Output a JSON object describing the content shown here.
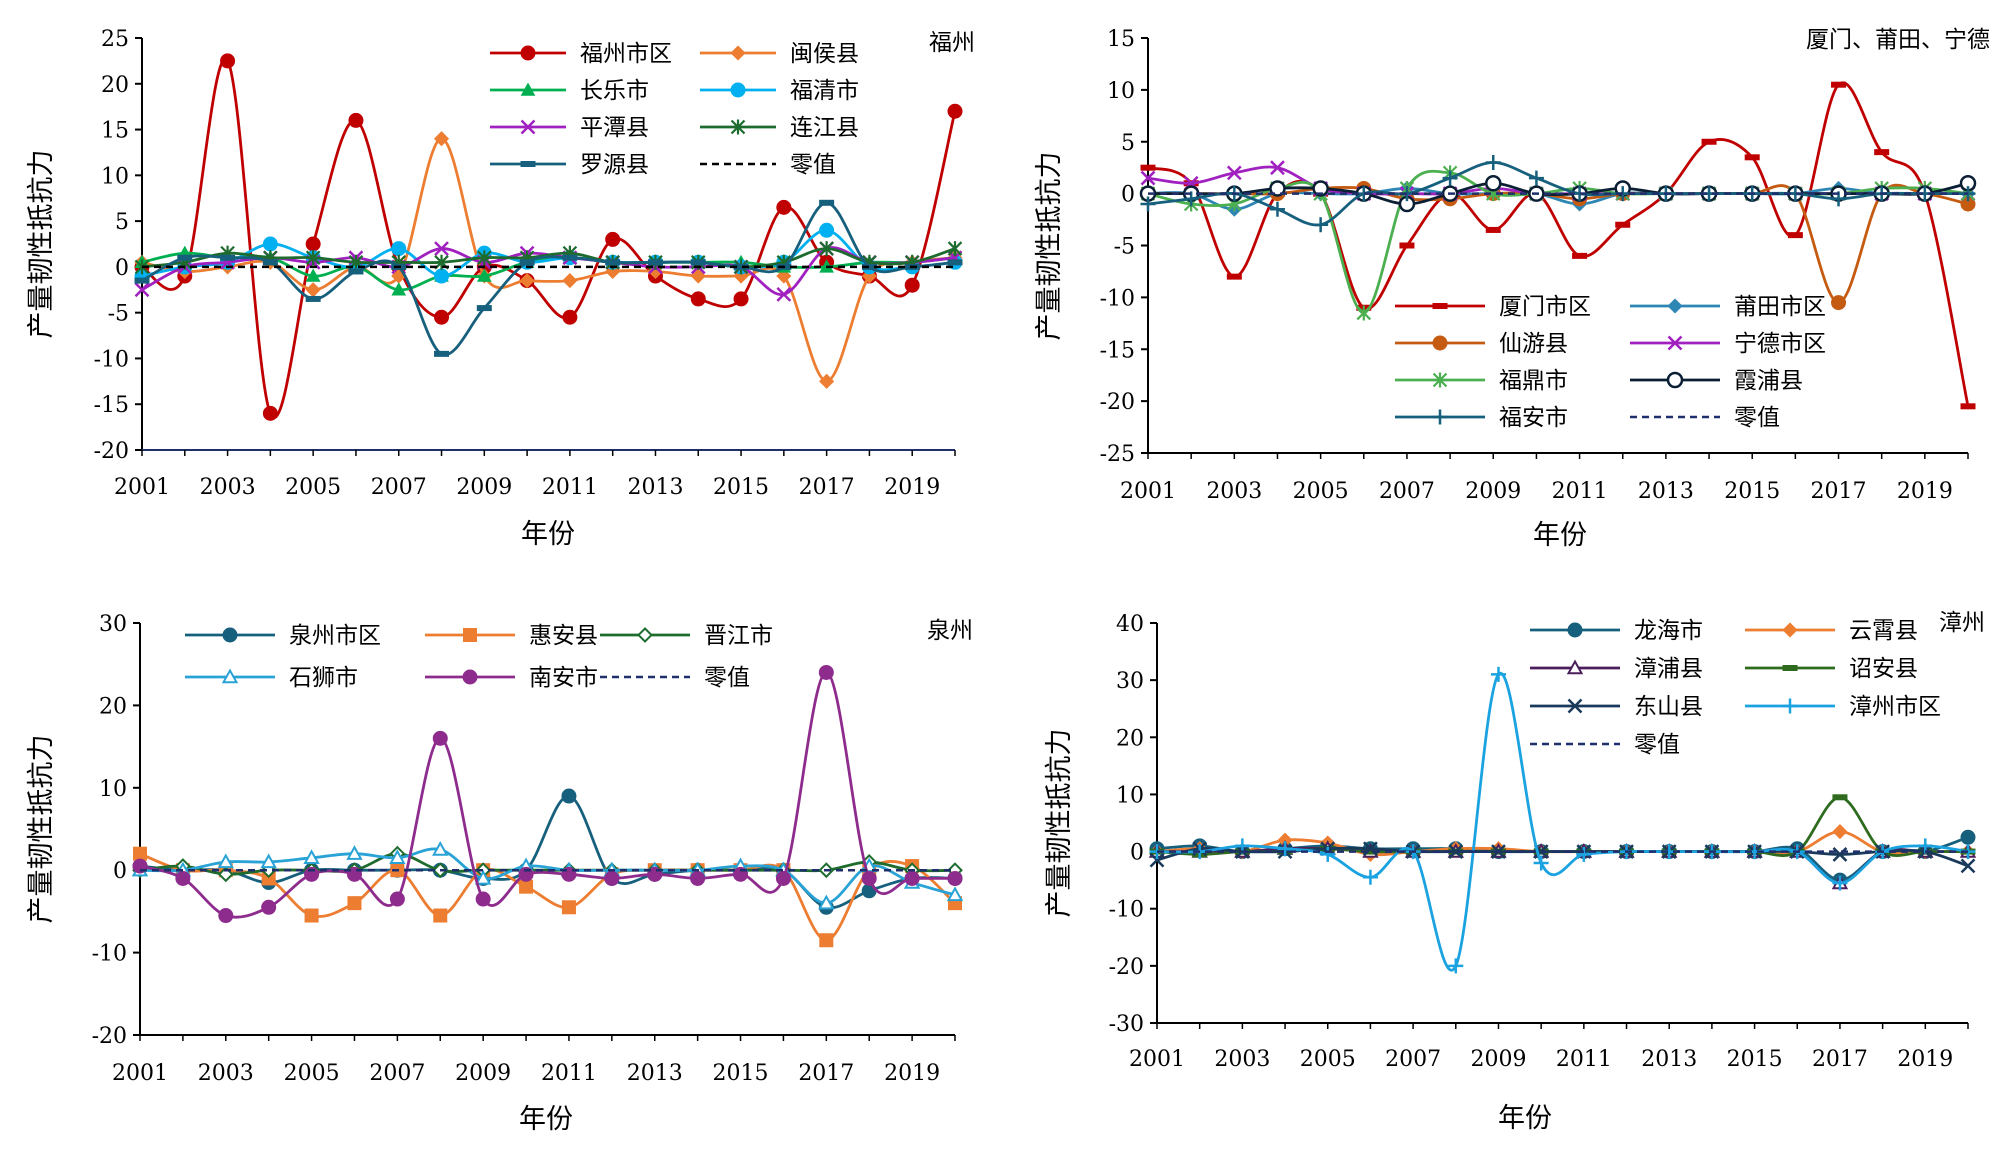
{
  "chart_data": [
    {
      "type": "line",
      "title": "福州",
      "xlabel": "年份",
      "ylabel": "产量韧性抵抗力",
      "ylim": [
        -20,
        25
      ],
      "yticks": [
        -20,
        -15,
        -10,
        -5,
        0,
        5,
        10,
        15,
        20,
        25
      ],
      "x": [
        2001,
        2002,
        2003,
        2004,
        2005,
        2006,
        2007,
        2008,
        2009,
        2010,
        2011,
        2012,
        2013,
        2014,
        2015,
        2016,
        2017,
        2018,
        2019,
        2020
      ],
      "xticks": [
        2001,
        2003,
        2005,
        2007,
        2009,
        2011,
        2013,
        2015,
        2017,
        2019
      ],
      "legend": "top-right",
      "series": [
        {
          "name": "福州市区",
          "color": "#c00000",
          "marker": "circle",
          "values": [
            0,
            -1,
            22.5,
            -16,
            2.5,
            16,
            0,
            -5.5,
            0,
            -1.5,
            -5.5,
            3,
            -1,
            -3.5,
            -3.5,
            6.5,
            0.5,
            -1,
            -2,
            17
          ]
        },
        {
          "name": "闽侯县",
          "color": "#ed7d31",
          "marker": "diamond",
          "values": [
            0.5,
            -0.5,
            0,
            0.5,
            -2.5,
            0,
            -1,
            14,
            -1,
            -1.5,
            -1.5,
            -0.5,
            -0.5,
            -1,
            -1,
            -1,
            -12.5,
            -1,
            0.5,
            1
          ]
        },
        {
          "name": "长乐市",
          "color": "#00b050",
          "marker": "triangle",
          "values": [
            0.5,
            1.5,
            1,
            1,
            -1,
            0,
            -2.5,
            -1,
            -1,
            0.5,
            1,
            0.5,
            0.5,
            0.5,
            0.5,
            0,
            0,
            0.5,
            0.5,
            1
          ]
        },
        {
          "name": "福清市",
          "color": "#00b0f0",
          "marker": "circle",
          "values": [
            -1,
            0,
            0.5,
            2.5,
            1,
            0,
            2,
            -1,
            1.5,
            0.5,
            1,
            0.5,
            0.5,
            0.5,
            0,
            0.5,
            4,
            0,
            0,
            0.5
          ]
        },
        {
          "name": "平潭县",
          "color": "#a020c0",
          "marker": "x",
          "values": [
            -2.5,
            0,
            0.5,
            1,
            0.5,
            1,
            0,
            2,
            0.5,
            1.5,
            1,
            0.5,
            0,
            0,
            0,
            -3,
            2,
            0.5,
            0.5,
            1
          ]
        },
        {
          "name": "连江县",
          "color": "#1e6b2e",
          "marker": "star",
          "values": [
            0,
            0.5,
            1.5,
            1,
            1,
            0.5,
            0.5,
            0.5,
            1,
            1,
            1.5,
            0.5,
            0.5,
            0.5,
            0,
            0.5,
            2,
            0.5,
            0.5,
            2
          ]
        },
        {
          "name": "罗源县",
          "color": "#17607d",
          "marker": "dash",
          "values": [
            -1.5,
            1,
            1,
            0.5,
            -3.5,
            -0.5,
            0,
            -9.5,
            -4.5,
            0.5,
            1,
            0.5,
            0.5,
            0.5,
            0,
            0,
            7,
            0,
            0,
            0.5
          ]
        },
        {
          "name": "零值",
          "color": "#000000",
          "marker": "none",
          "dashed": true,
          "values": [
            0,
            0,
            0,
            0,
            0,
            0,
            0,
            0,
            0,
            0,
            0,
            0,
            0,
            0,
            0,
            0,
            0,
            0,
            0,
            0
          ]
        }
      ]
    },
    {
      "type": "line",
      "title": "厦门、莆田、宁德",
      "xlabel": "年份",
      "ylabel": "产量韧性抵抗力",
      "ylim": [
        -25,
        15
      ],
      "yticks": [
        -25,
        -20,
        -15,
        -10,
        -5,
        0,
        5,
        10,
        15
      ],
      "x": [
        2001,
        2002,
        2003,
        2004,
        2005,
        2006,
        2007,
        2008,
        2009,
        2010,
        2011,
        2012,
        2013,
        2014,
        2015,
        2016,
        2017,
        2018,
        2019,
        2020
      ],
      "xticks": [
        2001,
        2003,
        2005,
        2007,
        2009,
        2011,
        2013,
        2015,
        2017,
        2019
      ],
      "legend": "bottom-center",
      "series": [
        {
          "name": "厦门市区",
          "color": "#c00000",
          "marker": "dash",
          "values": [
            2.5,
            1,
            -8,
            0,
            0,
            -11,
            -5,
            0,
            -3.5,
            0,
            -6,
            -3,
            0,
            5,
            3.5,
            -4,
            10.5,
            4,
            0,
            -20.5
          ]
        },
        {
          "name": "莆田市区",
          "color": "#2e86b5",
          "marker": "diamond",
          "values": [
            0,
            0,
            -1.5,
            0,
            0,
            0,
            0.5,
            0,
            0,
            0,
            -1,
            0,
            0,
            0,
            0,
            0,
            0.5,
            0,
            0,
            0
          ]
        },
        {
          "name": "仙游县",
          "color": "#c55a11",
          "marker": "circle",
          "values": [
            0,
            0,
            0,
            0,
            0.5,
            0.5,
            -0.5,
            -0.5,
            0,
            0,
            -0.5,
            0,
            0,
            0,
            0,
            0,
            -10.5,
            0,
            0,
            -1
          ]
        },
        {
          "name": "宁德市区",
          "color": "#a020c0",
          "marker": "x",
          "values": [
            1.5,
            1,
            2,
            2.5,
            0.5,
            0,
            0,
            0,
            0.5,
            0,
            0,
            0,
            0,
            0,
            0,
            0,
            0,
            0,
            0,
            0
          ]
        },
        {
          "name": "福鼎市",
          "color": "#4caf50",
          "marker": "star",
          "values": [
            0,
            -1,
            -1,
            0.5,
            0,
            -11.5,
            0.5,
            2,
            0,
            0,
            0.5,
            0,
            0,
            0,
            0,
            0,
            0,
            0.5,
            0.5,
            0
          ]
        },
        {
          "name": "霞浦县",
          "color": "#0a1f33",
          "marker": "opencircle",
          "values": [
            0,
            0,
            0,
            0.5,
            0.5,
            0,
            -1,
            0,
            1,
            0,
            0,
            0.5,
            0,
            0,
            0,
            0,
            0,
            0,
            0,
            1
          ]
        },
        {
          "name": "福安市",
          "color": "#17607d",
          "marker": "plus",
          "values": [
            -1,
            -0.5,
            0,
            -1.5,
            -3,
            0,
            0,
            1.5,
            3,
            1.5,
            0,
            0,
            0,
            0,
            0,
            0,
            -0.5,
            0,
            0,
            0
          ]
        },
        {
          "name": "零值",
          "color": "#1f2f6b",
          "marker": "none",
          "dashed": true,
          "values": [
            0,
            0,
            0,
            0,
            0,
            0,
            0,
            0,
            0,
            0,
            0,
            0,
            0,
            0,
            0,
            0,
            0,
            0,
            0,
            0
          ]
        }
      ]
    },
    {
      "type": "line",
      "title": "泉州",
      "xlabel": "年份",
      "ylabel": "产量韧性抵抗力",
      "ylim": [
        -20,
        30
      ],
      "yticks": [
        -20,
        -10,
        0,
        10,
        20,
        30
      ],
      "x": [
        2001,
        2002,
        2003,
        2004,
        2005,
        2006,
        2007,
        2008,
        2009,
        2010,
        2011,
        2012,
        2013,
        2014,
        2015,
        2016,
        2017,
        2018,
        2019,
        2020
      ],
      "xticks": [
        2001,
        2003,
        2005,
        2007,
        2009,
        2011,
        2013,
        2015,
        2017,
        2019
      ],
      "legend": "top",
      "series": [
        {
          "name": "泉州市区",
          "color": "#17607d",
          "marker": "circle",
          "values": [
            0.5,
            0,
            0,
            -1.5,
            0,
            0,
            0,
            0,
            -1,
            0,
            9,
            -1,
            -0.5,
            0,
            0,
            0,
            -4.5,
            -2.5,
            -1,
            -1
          ]
        },
        {
          "name": "惠安县",
          "color": "#ed7d31",
          "marker": "square",
          "values": [
            2,
            0,
            0,
            -1,
            -5.5,
            -4,
            0,
            -5.5,
            0,
            -2,
            -4.5,
            -0.5,
            0,
            0,
            0,
            0,
            -8.5,
            0,
            0.5,
            -4
          ]
        },
        {
          "name": "晋江市",
          "color": "#1e6b2e",
          "marker": "diamondopen",
          "values": [
            0,
            0.5,
            -0.5,
            0,
            0,
            0,
            2,
            0,
            0,
            0,
            0,
            0,
            0,
            0,
            0,
            0,
            0,
            1,
            0,
            0
          ]
        },
        {
          "name": "石狮市",
          "color": "#29a3d6",
          "marker": "triangleopen",
          "values": [
            0,
            0,
            1,
            1,
            1.5,
            2,
            1.5,
            2.5,
            -1,
            0.5,
            0,
            0,
            0,
            0,
            0.5,
            0,
            -4,
            0.5,
            -1.5,
            -3
          ]
        },
        {
          "name": "南安市",
          "color": "#8e2c8e",
          "marker": "circle",
          "values": [
            0.5,
            -1,
            -5.5,
            -4.5,
            -0.5,
            -0.5,
            -3.5,
            16,
            -3.5,
            -0.5,
            -0.5,
            -1,
            -0.5,
            -1,
            -0.5,
            -1,
            24,
            -1,
            -1,
            -1
          ]
        },
        {
          "name": "零值",
          "color": "#1f2f6b",
          "marker": "none",
          "dashed": true,
          "values": [
            0,
            0,
            0,
            0,
            0,
            0,
            0,
            0,
            0,
            0,
            0,
            0,
            0,
            0,
            0,
            0,
            0,
            0,
            0,
            0
          ]
        }
      ]
    },
    {
      "type": "line",
      "title": "漳州",
      "xlabel": "年份",
      "ylabel": "产量韧性抵抗力",
      "ylim": [
        -30,
        40
      ],
      "yticks": [
        -30,
        -20,
        -10,
        0,
        10,
        20,
        30,
        40
      ],
      "x": [
        2001,
        2002,
        2003,
        2004,
        2005,
        2006,
        2007,
        2008,
        2009,
        2010,
        2011,
        2012,
        2013,
        2014,
        2015,
        2016,
        2017,
        2018,
        2019,
        2020
      ],
      "xticks": [
        2001,
        2003,
        2005,
        2007,
        2009,
        2011,
        2013,
        2015,
        2017,
        2019
      ],
      "legend": "top",
      "series": [
        {
          "name": "龙海市",
          "color": "#17607d",
          "marker": "circle",
          "values": [
            0.5,
            1,
            0,
            0.5,
            1,
            0.5,
            0.5,
            0.5,
            0,
            0,
            0,
            0,
            0,
            0,
            0,
            0.5,
            -5,
            0,
            0,
            2.5
          ]
        },
        {
          "name": "云霄县",
          "color": "#ed7d31",
          "marker": "diamond",
          "values": [
            0,
            0.5,
            0,
            2,
            1.5,
            -0.5,
            0,
            0.5,
            0.5,
            0,
            0,
            0,
            0,
            0,
            0,
            0,
            3.5,
            0,
            0,
            0
          ]
        },
        {
          "name": "漳浦县",
          "color": "#4b1f5c",
          "marker": "triangleopen",
          "values": [
            0,
            0,
            0,
            0.5,
            0.5,
            0,
            0,
            0,
            0,
            0,
            0,
            0,
            0,
            0,
            0,
            0,
            -5.5,
            0,
            0,
            0
          ]
        },
        {
          "name": "诏安县",
          "color": "#2e6b1e",
          "marker": "dash",
          "values": [
            0,
            -0.5,
            0,
            0,
            0.5,
            0,
            0,
            0,
            0,
            0,
            0,
            0,
            0,
            0,
            0,
            0,
            9.5,
            0,
            0,
            0
          ]
        },
        {
          "name": "东山县",
          "color": "#1a3a5c",
          "marker": "x",
          "values": [
            -1.5,
            0.5,
            0,
            0,
            0.5,
            0.5,
            0,
            0,
            0,
            0,
            0,
            0,
            0,
            0,
            0,
            0,
            -0.5,
            0,
            0,
            -2.5
          ]
        },
        {
          "name": "漳州市区",
          "color": "#1aa3e0",
          "marker": "plus",
          "values": [
            0,
            0,
            1,
            0.5,
            -0.5,
            -4.5,
            0,
            -20,
            31,
            -2,
            -0.5,
            0,
            0,
            0,
            0,
            0,
            -5.5,
            0,
            1,
            0
          ]
        },
        {
          "name": "零值",
          "color": "#1f2f6b",
          "marker": "none",
          "dashed": true,
          "values": [
            0,
            0,
            0,
            0,
            0,
            0,
            0,
            0,
            0,
            0,
            0,
            0,
            0,
            0,
            0,
            0,
            0,
            0,
            0,
            0
          ]
        }
      ]
    }
  ]
}
